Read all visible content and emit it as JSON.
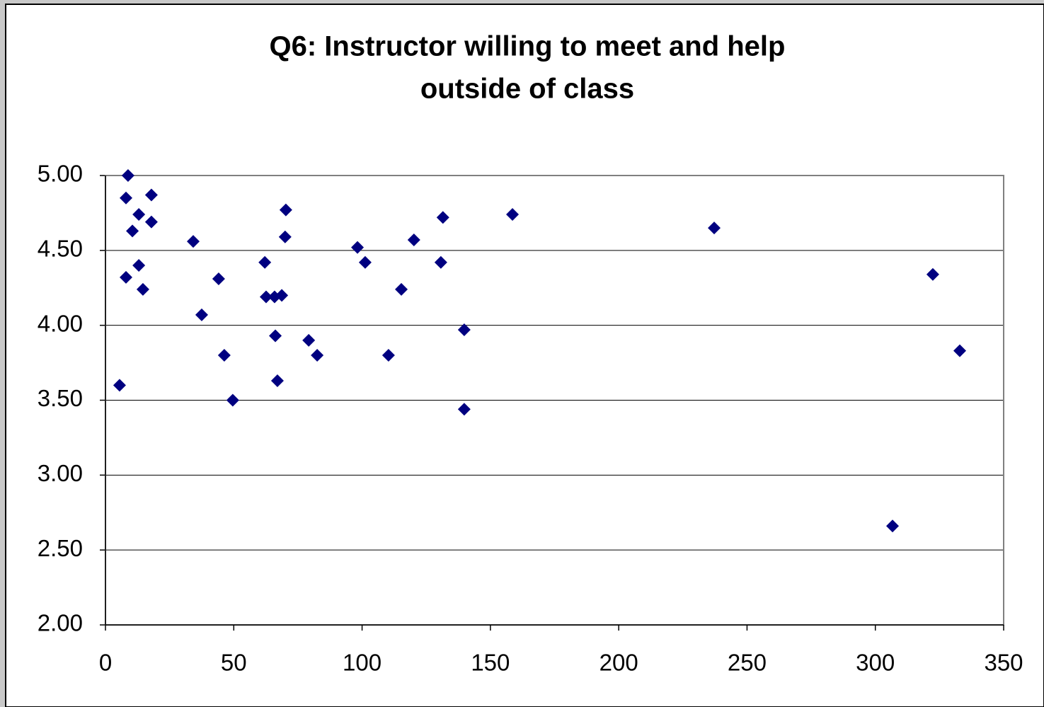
{
  "chart_data": {
    "type": "scatter",
    "title": [
      "Q6: Instructor willing to meet and help",
      "outside of class"
    ],
    "color": "#000080",
    "grid": true,
    "xlim": [
      0,
      350
    ],
    "xticks": [
      0,
      50,
      100,
      150,
      200,
      250,
      300,
      350
    ],
    "ylim": [
      2,
      5
    ],
    "yticks": [
      {
        "value": 2,
        "label": "2.00"
      },
      {
        "value": 2.5,
        "label": "2.50"
      },
      {
        "value": 3,
        "label": "3.00"
      },
      {
        "value": 3.5,
        "label": "3.50"
      },
      {
        "value": 4,
        "label": "4.00"
      },
      {
        "value": 4.5,
        "label": "4.50"
      },
      {
        "value": 5,
        "label": "5.00"
      }
    ],
    "x": [
      8.8,
      8.0,
      17.9,
      13.0,
      17.9,
      10.5,
      8.0,
      13.0,
      14.6,
      5.5,
      34.2,
      44.1,
      37.5,
      46.3,
      49.6,
      62.1,
      62.6,
      65.9,
      68.7,
      66.2,
      67.0,
      70.3,
      70.0,
      79.2,
      82.5,
      98.2,
      101.2,
      110.3,
      115.3,
      120.2,
      131.5,
      130.7,
      139.8,
      139.8,
      158.6,
      237.2,
      306.7,
      322.4,
      332.9
    ],
    "values": [
      5.0,
      4.85,
      4.87,
      4.74,
      4.69,
      4.63,
      4.32,
      4.4,
      4.24,
      3.6,
      4.56,
      4.31,
      4.07,
      3.8,
      3.5,
      4.42,
      4.19,
      4.19,
      4.2,
      3.93,
      3.63,
      4.77,
      4.59,
      3.9,
      3.8,
      4.52,
      4.42,
      3.8,
      4.24,
      4.57,
      4.72,
      4.42,
      3.97,
      3.44,
      4.74,
      4.65,
      2.66,
      4.34,
      3.83
    ]
  }
}
